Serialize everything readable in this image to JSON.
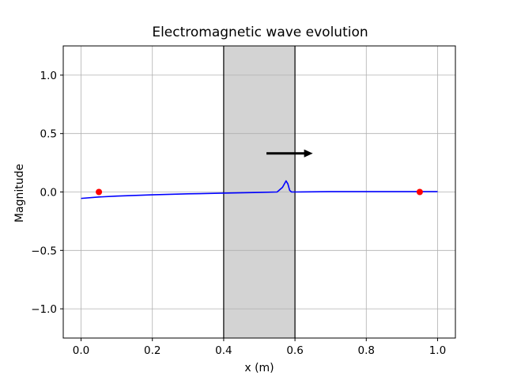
{
  "chart_data": {
    "type": "line",
    "title": "Electromagnetic wave evolution",
    "xlabel": "x (m)",
    "ylabel": "Magnitude",
    "xlim": [
      -0.05,
      1.05
    ],
    "ylim": [
      -1.25,
      1.25
    ],
    "xticks": [
      0.0,
      0.2,
      0.4,
      0.6,
      0.8,
      1.0
    ],
    "xtick_labels": [
      "0.0",
      "0.2",
      "0.4",
      "0.6",
      "0.8",
      "1.0"
    ],
    "yticks": [
      -1.0,
      -0.5,
      0.0,
      0.5,
      1.0
    ],
    "ytick_labels": [
      "−1.0",
      "−0.5",
      "0.0",
      "0.5",
      "1.0"
    ],
    "grid": true,
    "region": {
      "x_start": 0.4,
      "x_end": 0.6,
      "color": "#d3d3d3"
    },
    "series": [
      {
        "color": "#0000ff",
        "x": [
          0.0,
          0.05,
          0.1,
          0.2,
          0.3,
          0.4,
          0.5,
          0.55,
          0.565,
          0.575,
          0.58,
          0.585,
          0.59,
          0.6,
          0.7,
          0.8,
          0.9,
          1.0
        ],
        "y": [
          -0.055,
          -0.043,
          -0.035,
          -0.024,
          -0.016,
          -0.01,
          -0.004,
          0.0,
          0.04,
          0.095,
          0.07,
          0.015,
          0.0,
          0.0,
          0.003,
          0.003,
          0.003,
          0.003
        ]
      }
    ],
    "markers": {
      "color": "#ff0000",
      "points": [
        {
          "x": 0.05,
          "y": 0.0
        },
        {
          "x": 0.95,
          "y": 0.0
        }
      ]
    },
    "arrow": {
      "x_start": 0.52,
      "x_end": 0.65,
      "y": 0.33,
      "color": "#000000"
    }
  }
}
